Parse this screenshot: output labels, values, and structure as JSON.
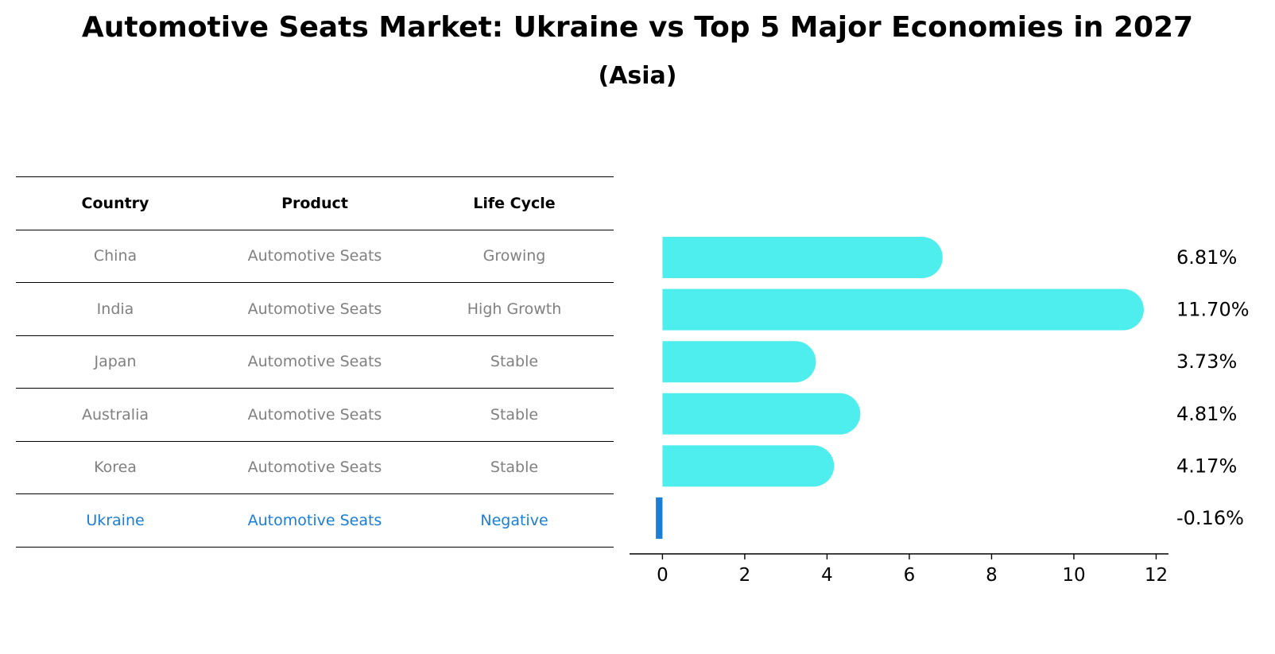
{
  "title": "Automotive Seats Market: Ukraine vs Top 5 Major Economies in 2027",
  "subtitle": "(Asia)",
  "table": {
    "headers": [
      "Country",
      "Product",
      "Life Cycle"
    ],
    "rows": [
      {
        "country": "China",
        "product": "Automotive Seats",
        "life_cycle": "Growing"
      },
      {
        "country": "India",
        "product": "Automotive Seats",
        "life_cycle": "High Growth"
      },
      {
        "country": "Japan",
        "product": "Automotive Seats",
        "life_cycle": "Stable"
      },
      {
        "country": "Australia",
        "product": "Automotive Seats",
        "life_cycle": "Stable"
      },
      {
        "country": "Korea",
        "product": "Automotive Seats",
        "life_cycle": "Stable"
      },
      {
        "country": "Ukraine",
        "product": "Automotive Seats",
        "life_cycle": "Negative"
      }
    ]
  },
  "chart_data": {
    "type": "bar",
    "orientation": "horizontal",
    "categories": [
      "China",
      "India",
      "Japan",
      "Australia",
      "Korea",
      "Ukraine"
    ],
    "values": [
      6.81,
      11.7,
      3.73,
      4.81,
      4.17,
      -0.16
    ],
    "value_labels": [
      "6.81%",
      "11.70%",
      "3.73%",
      "4.81%",
      "4.17%",
      "-0.16%"
    ],
    "xlim": [
      -0.8,
      12.3
    ],
    "xticks": [
      0,
      2,
      4,
      6,
      8,
      10,
      12
    ],
    "colors": {
      "bar": "#4eeeee",
      "highlight": "#1a7ed6"
    }
  }
}
